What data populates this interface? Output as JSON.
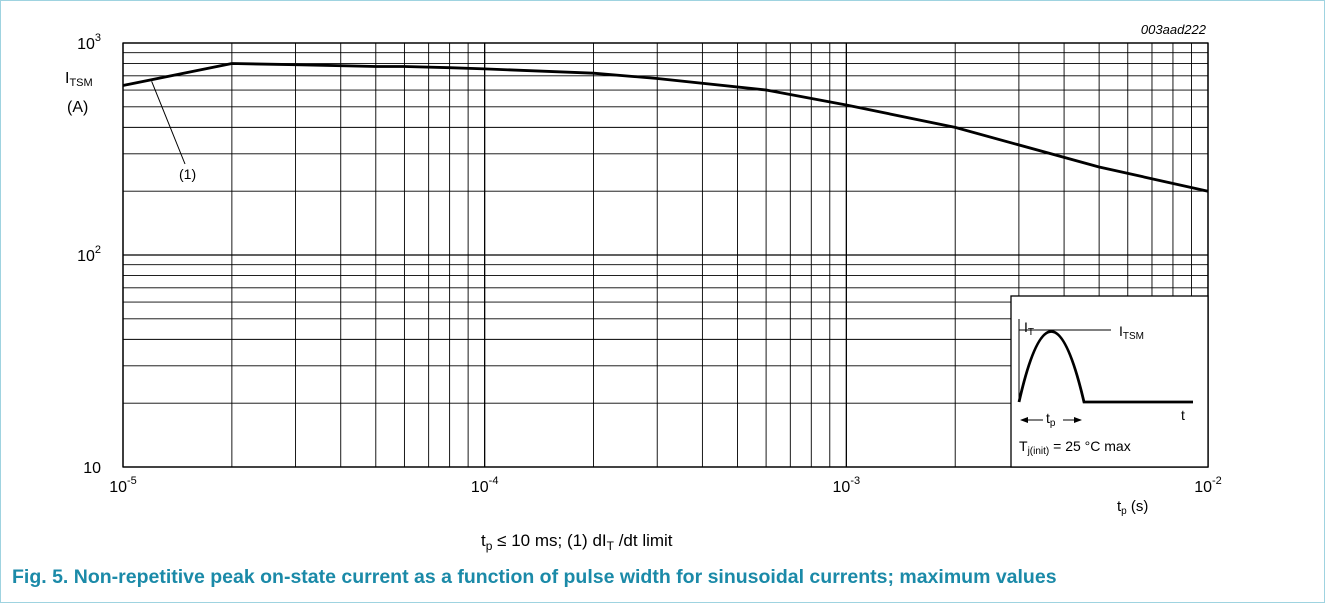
{
  "chart_data": {
    "type": "line",
    "figure_id": "003aad222",
    "x_scale": "log",
    "y_scale": "log",
    "xlim": [
      1e-05,
      0.01
    ],
    "ylim": [
      10,
      1000
    ],
    "grid": true,
    "x_ticks": [
      {
        "value": 1e-05,
        "base": "10",
        "exp": "-5"
      },
      {
        "value": 0.0001,
        "base": "10",
        "exp": "-4"
      },
      {
        "value": 0.001,
        "base": "10",
        "exp": "-3"
      },
      {
        "value": 0.01,
        "base": "10",
        "exp": "-2"
      }
    ],
    "y_ticks": [
      {
        "value": 10,
        "base": "10",
        "exp": ""
      },
      {
        "value": 100,
        "base": "10",
        "exp": "2"
      },
      {
        "value": 1000,
        "base": "10",
        "exp": "3"
      }
    ],
    "ylabel": {
      "main": "I",
      "sub": "TSM",
      "unit": "(A)"
    },
    "xlabel": {
      "main": "t",
      "sub": "p",
      "unit": " (s)"
    },
    "series": [
      {
        "x": [
          1e-05,
          2e-05,
          3e-05,
          5e-05,
          6e-05,
          8e-05,
          0.0001,
          0.0002,
          0.0003,
          0.0006,
          0.001,
          0.002,
          0.005,
          0.01
        ],
        "y": [
          630,
          800,
          790,
          775,
          775,
          765,
          755,
          720,
          680,
          600,
          510,
          400,
          260,
          200
        ]
      }
    ],
    "annotations": [
      {
        "text": "(1)",
        "points_to": {
          "x": 1.2e-05,
          "y": 660
        }
      }
    ],
    "inset": {
      "y_label_main": "I",
      "y_label_sub": "T",
      "peak_label_main": "I",
      "peak_label_sub": "TSM",
      "x_label": "t",
      "width_label_main": "t",
      "width_label_sub": "p",
      "condition_main": "T",
      "condition_sub": "j(init)",
      "condition_rest": " = 25 °C max"
    },
    "conditions": {
      "text1_main": "t",
      "text1_sub": "p",
      "text1_rest": "  ≤  10 ms;    (1) dI",
      "text2_sub": "T",
      "text2_rest": " /dt limit"
    }
  },
  "caption": "Fig. 5. Non-repetitive peak on-state current as a function of pulse width for sinusoidal currents; maximum values"
}
